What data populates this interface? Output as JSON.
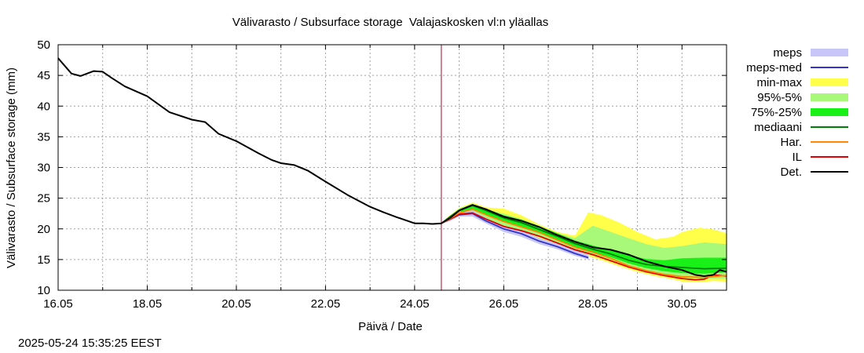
{
  "chart_data": {
    "type": "line",
    "title": "Välivarasto / Subsurface storage  Valajaskosken vl:n yläallas",
    "xlabel": "Päivä / Date",
    "ylabel": "Välivarasto / Subsurface storage (mm)",
    "xlim": [
      16.05,
      31.05
    ],
    "ylim": [
      10,
      50
    ],
    "yticks": [
      10,
      15,
      20,
      25,
      30,
      35,
      40,
      45,
      50
    ],
    "xtick_labels": [
      "16.05",
      "18.05",
      "20.05",
      "22.05",
      "24.05",
      "26.05",
      "28.05",
      "30.05"
    ],
    "xtick_values": [
      0,
      2,
      4,
      6,
      8,
      10,
      12,
      14
    ],
    "x_unit": "days since 16.05 00:00",
    "grid": true,
    "legend_position": "right",
    "forecast_start": 8.6,
    "colors": {
      "meps": "#c6c6f8",
      "meps_med": "#3434c8",
      "min_max": "#ffff4a",
      "p95_5": "#a8f87a",
      "p75_25": "#18f018",
      "mediaani": "#008000",
      "har": "#ff8800",
      "il": "#e00000",
      "det": "#000000",
      "forecast_line": "#b00020"
    },
    "legend": [
      {
        "key": "meps",
        "label": "meps",
        "kind": "band"
      },
      {
        "key": "meps_med",
        "label": "meps-med",
        "kind": "line"
      },
      {
        "key": "min_max",
        "label": "min-max",
        "kind": "band"
      },
      {
        "key": "p95_5",
        "label": "95%-5%",
        "kind": "band"
      },
      {
        "key": "p75_25",
        "label": "75%-25%",
        "kind": "band"
      },
      {
        "key": "mediaani",
        "label": "mediaani",
        "kind": "line"
      },
      {
        "key": "har",
        "label": "Har.",
        "kind": "line"
      },
      {
        "key": "il",
        "label": "IL",
        "kind": "line"
      },
      {
        "key": "det",
        "label": "Det.",
        "kind": "line"
      }
    ],
    "series": {
      "det": {
        "x": [
          0,
          0.3,
          0.5,
          0.8,
          1.0,
          1.2,
          1.5,
          2.0,
          2.5,
          3.0,
          3.3,
          3.6,
          4.0,
          4.5,
          4.8,
          5.0,
          5.3,
          5.6,
          6.0,
          6.5,
          7.0,
          7.3,
          7.6,
          8.0,
          8.2,
          8.4,
          8.6,
          8.8,
          9.0,
          9.3,
          9.6,
          10.0,
          10.4,
          10.8,
          11.2,
          11.6,
          12.0,
          12.4,
          12.8,
          13.2,
          13.6,
          14.0,
          14.3,
          14.5,
          14.7,
          14.85,
          15.0
        ],
        "y": [
          47.8,
          45.3,
          44.9,
          45.7,
          45.6,
          44.6,
          43.2,
          41.6,
          39.0,
          37.8,
          37.4,
          35.5,
          34.3,
          32.3,
          31.2,
          30.7,
          30.4,
          29.5,
          27.7,
          25.5,
          23.6,
          22.7,
          21.9,
          20.9,
          20.9,
          20.8,
          20.9,
          21.8,
          23.0,
          23.9,
          23.2,
          22.0,
          21.3,
          20.3,
          19.0,
          17.9,
          17.0,
          16.6,
          15.8,
          14.7,
          13.9,
          13.3,
          12.5,
          12.3,
          12.5,
          13.3,
          13.0
        ]
      },
      "mediaani": {
        "x": [
          8.6,
          8.8,
          9.0,
          9.3,
          9.6,
          10.0,
          10.4,
          10.8,
          11.2,
          11.6,
          12.0,
          12.4,
          12.8,
          13.2,
          13.6,
          14.0,
          14.5,
          15.0
        ],
        "y": [
          20.9,
          22.0,
          23.0,
          23.8,
          23.0,
          21.8,
          21.0,
          19.9,
          18.8,
          17.6,
          16.7,
          15.9,
          14.9,
          14.2,
          13.9,
          13.7,
          13.5,
          13.6
        ]
      },
      "har": {
        "x": [
          8.6,
          8.8,
          9.0,
          9.3,
          9.6,
          10.0,
          10.4,
          10.8,
          11.2,
          11.6,
          12.0,
          12.4,
          12.8,
          13.2,
          13.6,
          14.0,
          14.5,
          15.0
        ],
        "y": [
          20.9,
          21.7,
          22.6,
          23.2,
          22.3,
          21.2,
          20.3,
          19.4,
          18.2,
          17.0,
          16.2,
          15.2,
          14.0,
          13.2,
          12.6,
          12.2,
          12.1,
          12.4
        ]
      },
      "il": {
        "x": [
          8.6,
          8.8,
          9.0,
          9.3,
          9.6,
          10.0,
          10.4,
          10.8,
          11.2,
          11.6,
          12.0,
          12.4,
          12.8,
          13.2,
          13.6,
          14.0,
          14.3,
          14.5,
          14.7,
          15.0
        ],
        "y": [
          20.9,
          21.6,
          22.4,
          22.6,
          21.6,
          20.4,
          19.7,
          18.8,
          17.7,
          16.6,
          15.8,
          14.8,
          13.8,
          13.0,
          12.4,
          11.9,
          11.7,
          11.8,
          12.5,
          12.3
        ]
      },
      "meps_med": {
        "x": [
          8.6,
          8.8,
          9.0,
          9.3,
          9.6,
          10.0,
          10.4,
          10.8,
          11.2,
          11.6,
          11.9
        ],
        "y": [
          20.9,
          21.6,
          22.3,
          22.5,
          21.3,
          20.0,
          19.2,
          18.0,
          17.1,
          16.0,
          15.3
        ]
      }
    },
    "bands": {
      "meps": {
        "x": [
          8.6,
          8.8,
          9.0,
          9.3,
          9.6,
          10.0,
          10.4,
          10.8,
          11.2,
          11.6,
          11.9
        ],
        "lower": [
          20.9,
          21.3,
          22.0,
          22.0,
          20.9,
          19.5,
          18.7,
          17.5,
          16.7,
          15.6,
          15.0
        ],
        "upper": [
          20.9,
          21.9,
          22.8,
          23.0,
          21.8,
          20.4,
          19.7,
          18.5,
          17.6,
          16.5,
          15.8
        ]
      },
      "min_max": {
        "x": [
          8.6,
          8.8,
          9.0,
          9.3,
          9.6,
          10.0,
          10.4,
          10.8,
          11.2,
          11.6,
          11.9,
          12.2,
          12.6,
          13.0,
          13.4,
          13.8,
          14.0,
          14.4,
          14.7,
          15.0
        ],
        "lower": [
          20.9,
          21.5,
          22.3,
          22.5,
          21.4,
          20.1,
          19.4,
          18.5,
          17.4,
          16.3,
          15.6,
          14.9,
          13.9,
          13.0,
          12.3,
          11.8,
          11.4,
          11.3,
          11.5,
          11.4
        ],
        "upper": [
          20.9,
          22.3,
          23.4,
          24.3,
          23.5,
          23.3,
          22.2,
          20.7,
          19.5,
          18.9,
          22.7,
          22.2,
          21.0,
          19.5,
          18.3,
          18.7,
          19.5,
          20.2,
          19.9,
          19.3
        ]
      },
      "p95_5": {
        "x": [
          8.6,
          8.8,
          9.0,
          9.3,
          9.6,
          10.0,
          10.4,
          10.8,
          11.2,
          11.6,
          12.0,
          12.4,
          12.8,
          13.2,
          13.6,
          14.0,
          14.5,
          15.0
        ],
        "lower": [
          20.9,
          21.6,
          22.5,
          22.8,
          21.7,
          20.5,
          19.8,
          18.9,
          17.8,
          16.7,
          15.9,
          15.0,
          14.0,
          13.2,
          12.6,
          12.1,
          11.9,
          11.9
        ],
        "upper": [
          20.9,
          22.2,
          23.3,
          24.1,
          23.2,
          22.5,
          21.6,
          20.5,
          19.3,
          18.5,
          20.5,
          19.5,
          18.5,
          17.5,
          16.9,
          17.2,
          17.8,
          17.5
        ]
      },
      "p75_25": {
        "x": [
          8.6,
          8.8,
          9.0,
          9.3,
          9.6,
          10.0,
          10.4,
          10.8,
          11.2,
          11.6,
          12.0,
          12.4,
          12.8,
          13.2,
          13.6,
          14.0,
          14.5,
          15.0
        ],
        "lower": [
          20.9,
          21.8,
          22.7,
          23.3,
          22.4,
          21.2,
          20.4,
          19.4,
          18.3,
          17.1,
          16.2,
          15.4,
          14.4,
          13.6,
          13.1,
          12.8,
          12.7,
          12.9
        ],
        "upper": [
          20.9,
          22.1,
          23.2,
          24.0,
          23.2,
          22.2,
          21.5,
          20.4,
          19.3,
          18.1,
          17.3,
          16.5,
          15.7,
          15.1,
          14.9,
          15.2,
          15.3,
          15.3
        ]
      }
    }
  },
  "footer": {
    "timestamp": "2025-05-24 15:35:25 EEST"
  }
}
